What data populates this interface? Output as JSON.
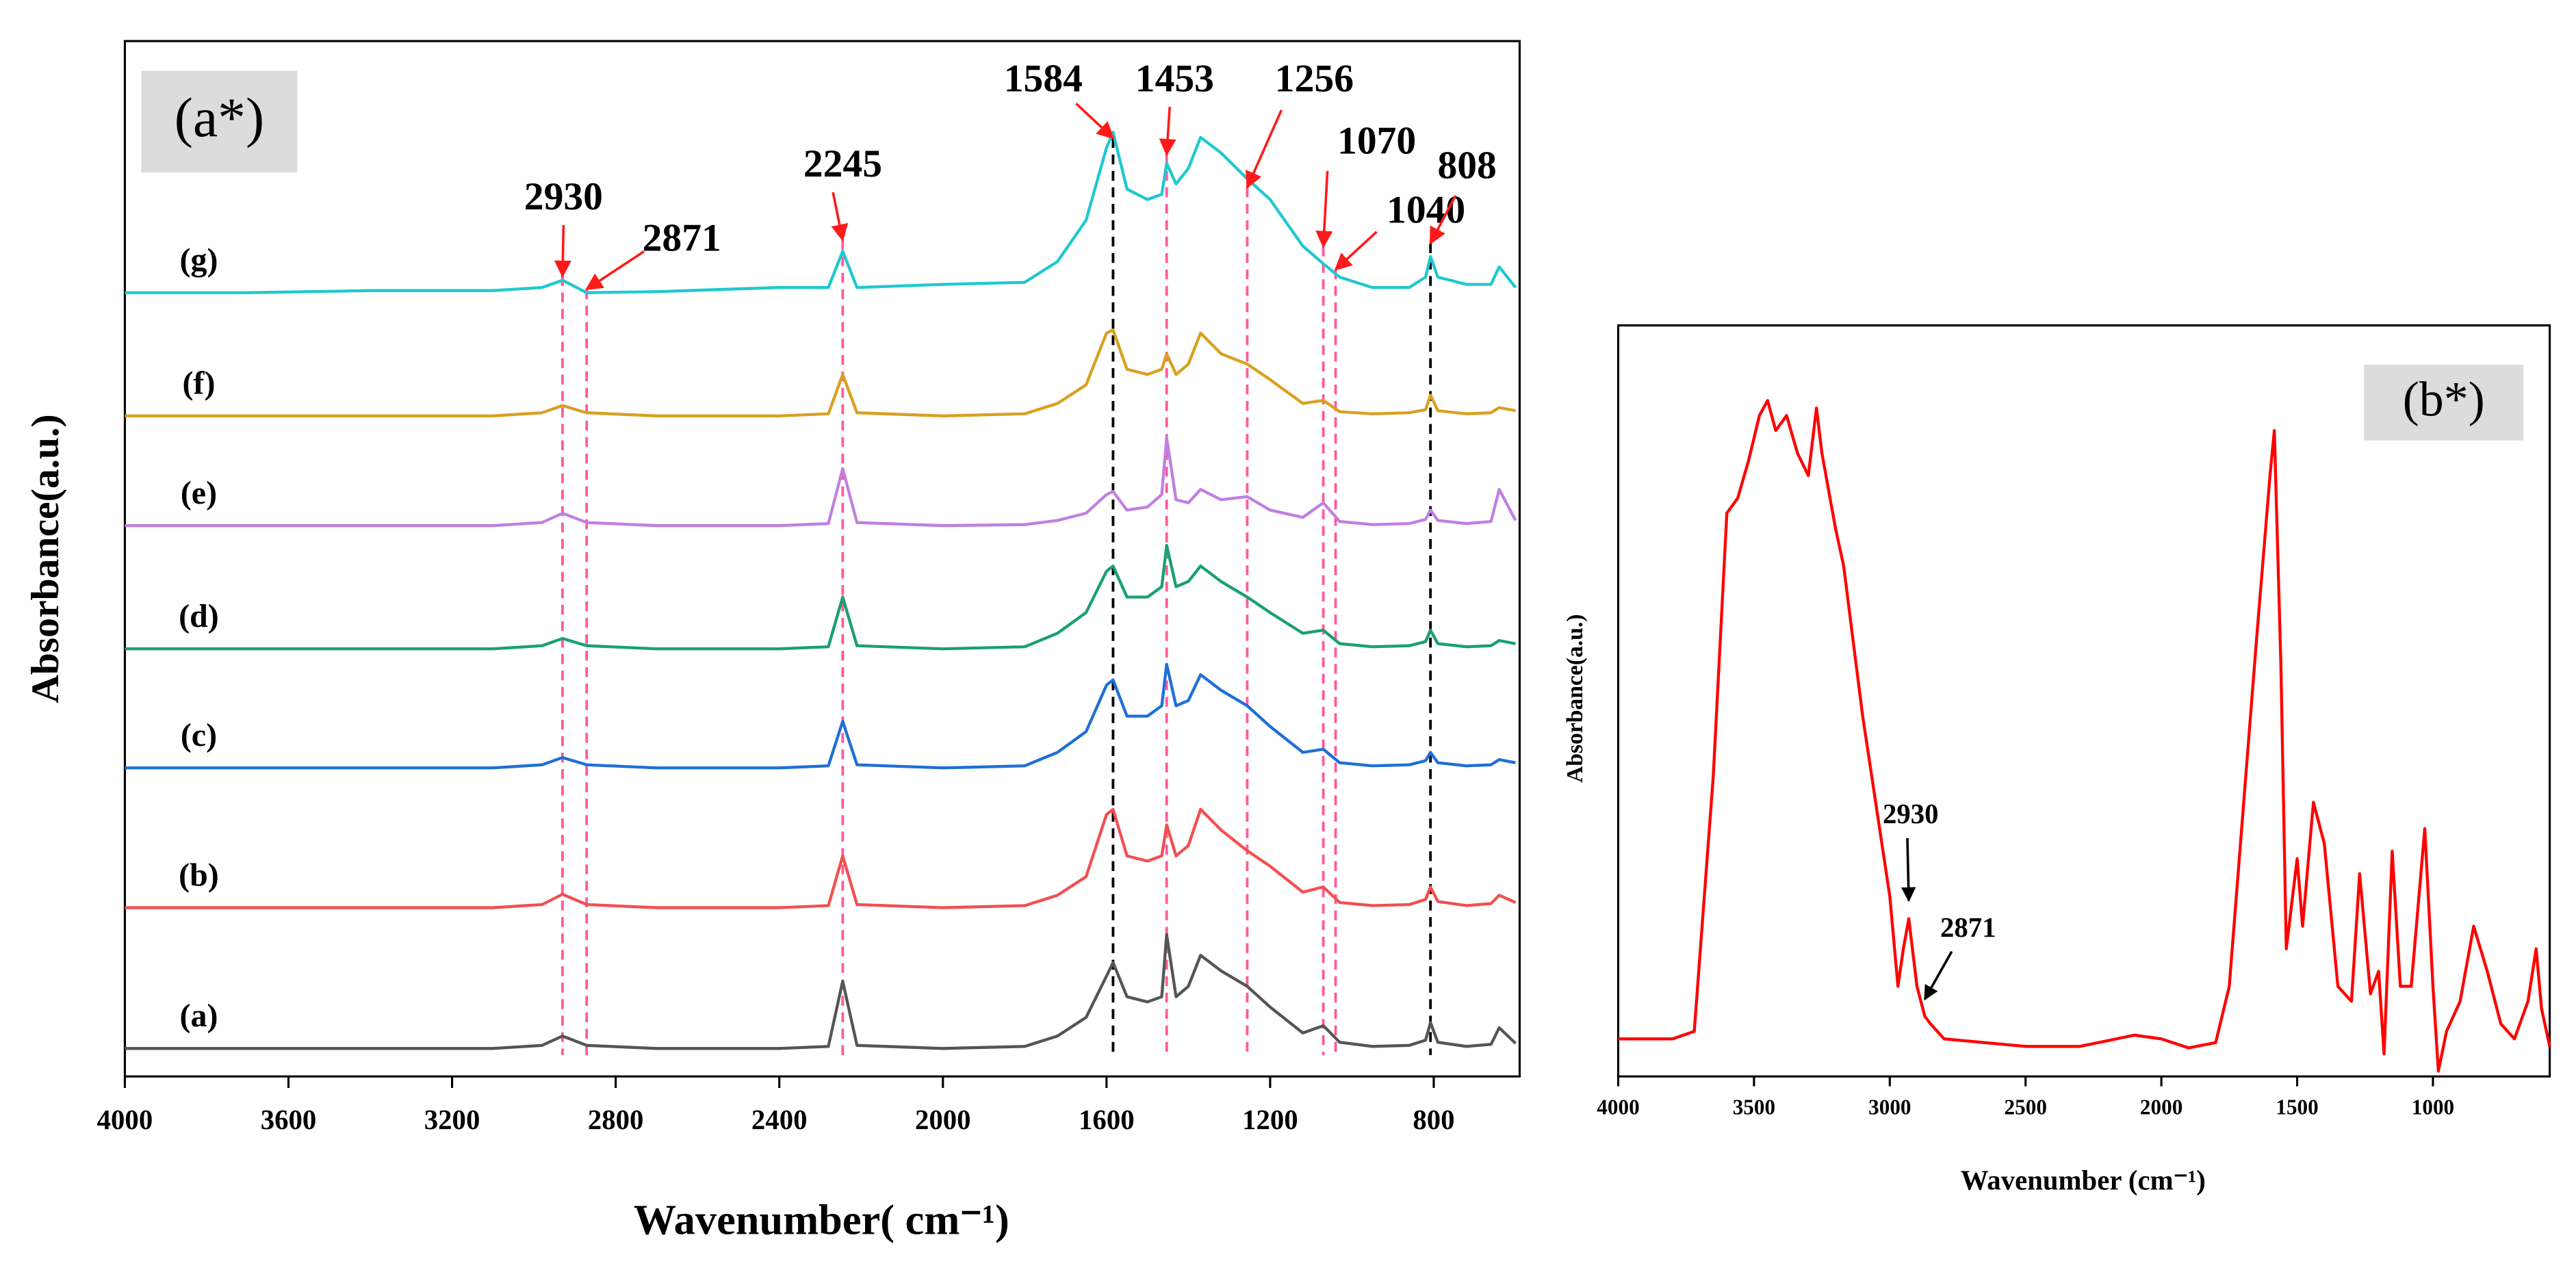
{
  "chart_data": [
    {
      "type": "line",
      "panel_label": "(a*)",
      "xlabel": "Wavenumber( cm⁻¹)",
      "ylabel": "Absorbance(a.u.)",
      "xlim": [
        4000,
        590
      ],
      "xticks": [
        4000,
        3600,
        3200,
        2800,
        2400,
        2000,
        1600,
        1200,
        800
      ],
      "ylim": [
        0,
        100
      ],
      "x": [
        4000,
        3700,
        3400,
        3100,
        2980,
        2930,
        2871,
        2700,
        2400,
        2280,
        2245,
        2210,
        2000,
        1800,
        1720,
        1650,
        1600,
        1584,
        1550,
        1500,
        1465,
        1453,
        1430,
        1400,
        1370,
        1320,
        1256,
        1200,
        1120,
        1070,
        1030,
        950,
        860,
        820,
        808,
        790,
        720,
        660,
        640,
        600
      ],
      "series": [
        {
          "name": "(a)",
          "color": "#555555",
          "values": [
            2.7,
            2.7,
            2.7,
            2.7,
            3,
            3.9,
            3,
            2.7,
            2.7,
            2.9,
            9.2,
            3,
            2.7,
            2.9,
            3.9,
            5.7,
            9.7,
            11,
            7.7,
            7.2,
            7.7,
            13.7,
            7.7,
            8.7,
            11.7,
            10.2,
            8.7,
            6.7,
            4.2,
            4.9,
            3.3,
            2.9,
            3,
            3.5,
            5.2,
            3.3,
            2.9,
            3.1,
            4.7,
            3.2
          ]
        },
        {
          "name": "(b)",
          "color": "#f25050",
          "values": [
            16.3,
            16.3,
            16.3,
            16.3,
            16.6,
            17.6,
            16.6,
            16.3,
            16.3,
            16.5,
            21.3,
            16.6,
            16.3,
            16.5,
            17.5,
            19.3,
            25.3,
            25.8,
            21.3,
            20.8,
            21.3,
            24.3,
            21.3,
            22.3,
            25.8,
            23.8,
            21.8,
            20.3,
            17.8,
            18.3,
            16.8,
            16.5,
            16.6,
            17.1,
            18.3,
            16.9,
            16.5,
            16.7,
            17.5,
            16.8
          ]
        },
        {
          "name": "(c)",
          "color": "#1f6fd6",
          "values": [
            29.8,
            29.8,
            29.8,
            29.8,
            30.1,
            30.8,
            30.1,
            29.8,
            29.8,
            30,
            34.3,
            30.1,
            29.8,
            30,
            31.3,
            33.3,
            37.8,
            38.3,
            34.8,
            34.8,
            35.8,
            39.8,
            35.8,
            36.3,
            38.8,
            37.3,
            35.8,
            33.8,
            31.3,
            31.6,
            30.3,
            30,
            30.1,
            30.5,
            31.3,
            30.3,
            30,
            30.1,
            30.6,
            30.3
          ]
        },
        {
          "name": "(d)",
          "color": "#1aa070",
          "values": [
            41.3,
            41.3,
            41.3,
            41.3,
            41.6,
            42.3,
            41.6,
            41.3,
            41.3,
            41.5,
            46.3,
            41.6,
            41.3,
            41.5,
            42.8,
            44.8,
            48.8,
            49.3,
            46.3,
            46.3,
            47.3,
            51.3,
            47.3,
            47.8,
            49.3,
            47.8,
            46.3,
            44.8,
            42.8,
            43.1,
            41.8,
            41.5,
            41.6,
            42,
            43.1,
            41.8,
            41.5,
            41.6,
            42.1,
            41.8
          ]
        },
        {
          "name": "(e)",
          "color": "#c080e0",
          "values": [
            53.2,
            53.2,
            53.2,
            53.2,
            53.5,
            54.4,
            53.5,
            53.2,
            53.2,
            53.4,
            58.7,
            53.5,
            53.2,
            53.3,
            53.7,
            54.4,
            56.2,
            56.5,
            54.7,
            55,
            56.2,
            61.7,
            55.7,
            55.4,
            56.7,
            55.7,
            56,
            54.7,
            54,
            55.4,
            53.6,
            53.3,
            53.4,
            53.8,
            54.7,
            53.7,
            53.4,
            53.6,
            56.7,
            53.7
          ]
        },
        {
          "name": "(f)",
          "color": "#d9a020",
          "values": [
            63.8,
            63.8,
            63.8,
            63.8,
            64.1,
            64.8,
            64.1,
            63.8,
            63.8,
            64,
            67.8,
            64.1,
            63.8,
            64,
            65,
            66.8,
            71.8,
            72.1,
            68.3,
            67.8,
            68.3,
            69.8,
            67.8,
            68.8,
            71.8,
            69.8,
            68.8,
            67.3,
            65,
            65.3,
            64.2,
            64,
            64.1,
            64.4,
            65.8,
            64.3,
            64,
            64.1,
            64.6,
            64.3
          ]
        },
        {
          "name": "(g)",
          "color": "#20c8d0",
          "values": [
            75.7,
            75.7,
            75.9,
            75.9,
            76.2,
            76.9,
            75.7,
            75.8,
            76.2,
            76.2,
            79.7,
            76.2,
            76.5,
            76.7,
            78.7,
            82.7,
            89.7,
            91.2,
            85.7,
            84.7,
            85.2,
            88.2,
            86.2,
            87.7,
            90.7,
            89.2,
            86.7,
            84.7,
            80.2,
            78.5,
            77.2,
            76.2,
            76.2,
            77.2,
            79.2,
            77.2,
            76.5,
            76.5,
            78.2,
            76.2
          ]
        }
      ],
      "arrow_color": "#ff1a1a",
      "annotations": [
        {
          "text": "2930",
          "x": 2930,
          "line_color": "#ff5aa0"
        },
        {
          "text": "2871",
          "x": 2871,
          "line_color": "#ff5aa0"
        },
        {
          "text": "2245",
          "x": 2245,
          "line_color": "#ff5aa0"
        },
        {
          "text": "1584",
          "x": 1584,
          "line_color": "#000000"
        },
        {
          "text": "1453",
          "x": 1453,
          "line_color": "#ff5aa0"
        },
        {
          "text": "1256",
          "x": 1256,
          "line_color": "#ff5aa0"
        },
        {
          "text": "1070",
          "x": 1070,
          "line_color": "#ff5aa0"
        },
        {
          "text": "1040",
          "x": 1040,
          "line_color": "#ff5aa0"
        },
        {
          "text": "808",
          "x": 808,
          "line_color": "#000000"
        }
      ]
    },
    {
      "type": "line",
      "panel_label": "(b*)",
      "xlabel": "Wavenumber (cm⁻¹)",
      "ylabel": "Absorbance(a.u.)",
      "xlim": [
        4000,
        570
      ],
      "xticks": [
        4000,
        3500,
        3000,
        2500,
        2000,
        1500,
        1000
      ],
      "ylim": [
        0,
        100
      ],
      "x": [
        4000,
        3800,
        3720,
        3650,
        3600,
        3560,
        3520,
        3480,
        3450,
        3420,
        3380,
        3340,
        3300,
        3270,
        3250,
        3200,
        3170,
        3100,
        3000,
        2970,
        2950,
        2930,
        2900,
        2871,
        2850,
        2800,
        2500,
        2300,
        2100,
        2000,
        1900,
        1800,
        1750,
        1700,
        1650,
        1600,
        1584,
        1560,
        1540,
        1500,
        1480,
        1440,
        1400,
        1350,
        1300,
        1270,
        1230,
        1200,
        1180,
        1150,
        1120,
        1080,
        1030,
        1000,
        980,
        950,
        900,
        850,
        800,
        750,
        700,
        650,
        620,
        600,
        570
      ],
      "series": [
        {
          "color": "#ff0000",
          "values": [
            5,
            5,
            6,
            40,
            75,
            77,
            82,
            88,
            90,
            86,
            88,
            83,
            80,
            89,
            83,
            73,
            68,
            48,
            24,
            12,
            17,
            21,
            12,
            8,
            7,
            5,
            4,
            4,
            5.5,
            5,
            3.8,
            4.5,
            12,
            35,
            58,
            80,
            86,
            55,
            17,
            29,
            20,
            36.5,
            31,
            12,
            10,
            27,
            11,
            14,
            3,
            30,
            12,
            12,
            33,
            12,
            0.7,
            6,
            10,
            20,
            14,
            7,
            5,
            10,
            17,
            9,
            4
          ]
        }
      ],
      "arrow_color": "#000000",
      "annotations": [
        {
          "text": "2930",
          "x": 2930
        },
        {
          "text": "2871",
          "x": 2871
        }
      ]
    }
  ]
}
